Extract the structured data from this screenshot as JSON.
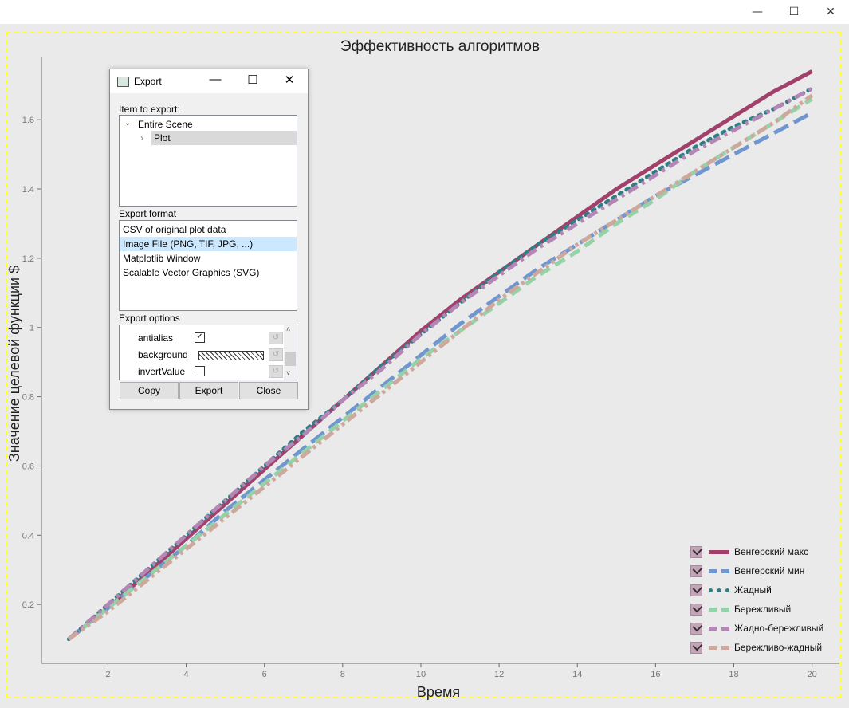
{
  "window": {
    "minimize": "—",
    "maximize": "☐",
    "close": "✕"
  },
  "chart_data": {
    "type": "line",
    "title": "Эффективность алгоритмов",
    "xlabel": "Время",
    "ylabel": "Значение целевой функции $",
    "xlim": [
      0.3,
      20.7
    ],
    "ylim": [
      0.03,
      1.78
    ],
    "xticks": [
      2,
      4,
      6,
      8,
      10,
      12,
      14,
      16,
      18,
      20
    ],
    "yticks": [
      0.2,
      0.4,
      0.6,
      0.8,
      1,
      1.2,
      1.4,
      1.6
    ],
    "legend_position": "bottom-right",
    "x": [
      1,
      2,
      3,
      4,
      5,
      6,
      7,
      8,
      9,
      10,
      11,
      12,
      13,
      14,
      15,
      16,
      17,
      18,
      19,
      20
    ],
    "series": [
      {
        "name": "Венгерский макс",
        "color": "#a1416b",
        "dash": "solid",
        "values": [
          0.1,
          0.19,
          0.29,
          0.39,
          0.49,
          0.59,
          0.69,
          0.79,
          0.89,
          0.99,
          1.08,
          1.16,
          1.24,
          1.32,
          1.4,
          1.47,
          1.54,
          1.61,
          1.68,
          1.74
        ]
      },
      {
        "name": "Венгерский мин",
        "color": "#6f96cf",
        "dash": "longdash",
        "values": [
          0.1,
          0.19,
          0.28,
          0.37,
          0.47,
          0.56,
          0.65,
          0.74,
          0.83,
          0.92,
          1.01,
          1.09,
          1.17,
          1.24,
          1.31,
          1.38,
          1.44,
          1.5,
          1.56,
          1.62
        ]
      },
      {
        "name": "Жадный",
        "color": "#2e7f85",
        "dash": "dot",
        "values": [
          0.1,
          0.2,
          0.3,
          0.4,
          0.5,
          0.6,
          0.7,
          0.79,
          0.89,
          0.98,
          1.07,
          1.16,
          1.24,
          1.31,
          1.38,
          1.45,
          1.52,
          1.58,
          1.63,
          1.69
        ]
      },
      {
        "name": "Бережливый",
        "color": "#93d3a8",
        "dash": "dash",
        "values": [
          0.1,
          0.19,
          0.28,
          0.37,
          0.46,
          0.55,
          0.64,
          0.73,
          0.82,
          0.91,
          0.99,
          1.07,
          1.15,
          1.22,
          1.3,
          1.37,
          1.45,
          1.52,
          1.59,
          1.66
        ]
      },
      {
        "name": "Жадно-бережливый",
        "color": "#b486b5",
        "dash": "dashdot",
        "values": [
          0.1,
          0.2,
          0.3,
          0.4,
          0.5,
          0.6,
          0.69,
          0.79,
          0.88,
          0.98,
          1.07,
          1.15,
          1.23,
          1.3,
          1.37,
          1.44,
          1.51,
          1.57,
          1.63,
          1.69
        ]
      },
      {
        "name": "Бережливо-жадный",
        "color": "#cda89d",
        "dash": "dashdotdot",
        "values": [
          0.1,
          0.18,
          0.27,
          0.36,
          0.45,
          0.54,
          0.63,
          0.72,
          0.81,
          0.9,
          0.99,
          1.08,
          1.16,
          1.24,
          1.31,
          1.38,
          1.45,
          1.52,
          1.59,
          1.67
        ]
      }
    ]
  },
  "dialog": {
    "title": "Export",
    "item_label": "Item to export:",
    "tree": [
      "Entire Scene",
      "Plot"
    ],
    "format_label": "Export format",
    "formats": [
      "CSV of original plot data",
      "Image File (PNG, TIF, JPG, ...)",
      "Matplotlib Window",
      "Scalable Vector Graphics (SVG)"
    ],
    "options_label": "Export options",
    "options": [
      "antialias",
      "background",
      "invertValue"
    ],
    "buttons": {
      "copy": "Copy",
      "export": "Export",
      "close": "Close"
    }
  }
}
